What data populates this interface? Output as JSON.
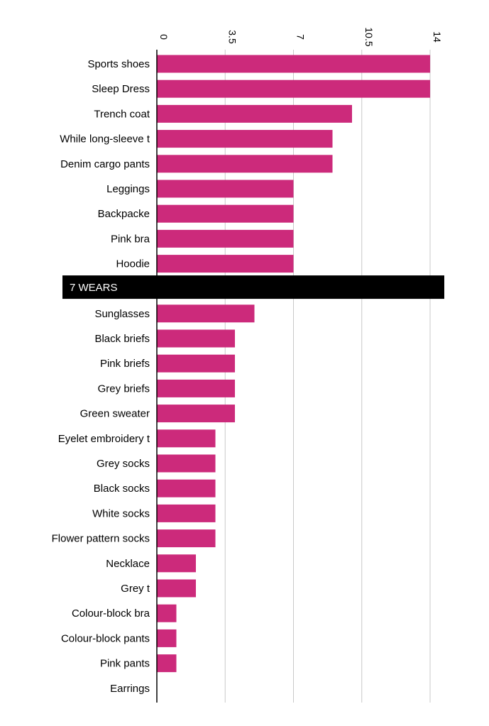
{
  "chart_data": {
    "type": "bar",
    "orientation": "horizontal",
    "categories": [
      "Sports shoes",
      "Sleep Dress",
      "Trench coat",
      "While long-sleeve t",
      "Denim cargo pants",
      "Leggings",
      "Backpacke",
      "Pink bra",
      "Hoodie",
      "Sunglasses",
      "Black briefs",
      "Pink briefs",
      "Grey briefs",
      "Green sweater",
      "Eyelet embroidery t",
      "Grey socks",
      "Black socks",
      "White socks",
      "Flower pattern socks",
      "Necklace",
      "Grey t",
      "Colour-block bra",
      "Colour-block pants",
      "Pink pants",
      "Earrings"
    ],
    "values": [
      14,
      14,
      10,
      9,
      9,
      7,
      7,
      7,
      7,
      5,
      4,
      4,
      4,
      4,
      3,
      3,
      3,
      3,
      3,
      2,
      2,
      1,
      1,
      1,
      0
    ],
    "xlim": [
      0,
      14
    ],
    "xticks": [
      "0",
      "3.5",
      "7",
      "10.5",
      "14"
    ],
    "xtick_values": [
      0,
      3.5,
      7,
      10.5,
      14
    ],
    "x_axis_position": "top",
    "grid": true,
    "bar_color": "#cc2a7b",
    "separator": {
      "label": "7 WEARS",
      "after_category": "Hoodie",
      "color": "#000000"
    }
  }
}
